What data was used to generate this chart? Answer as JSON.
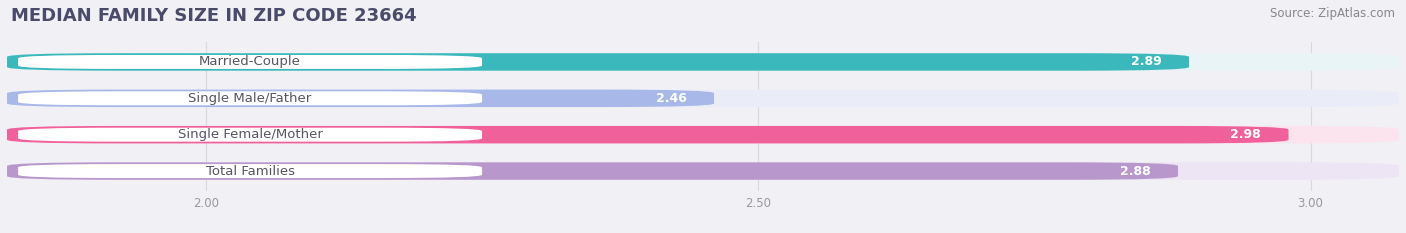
{
  "title": "MEDIAN FAMILY SIZE IN ZIP CODE 23664",
  "source": "Source: ZipAtlas.com",
  "categories": [
    "Married-Couple",
    "Single Male/Father",
    "Single Female/Mother",
    "Total Families"
  ],
  "values": [
    2.89,
    2.46,
    2.98,
    2.88
  ],
  "bar_colors": [
    "#3ab8bc",
    "#a8b8e8",
    "#f0609a",
    "#b898cc"
  ],
  "bar_bg_colors": [
    "#e8f4f6",
    "#eaecf8",
    "#fce4ee",
    "#ede4f4"
  ],
  "xmin": 1.82,
  "xmax": 3.08,
  "xticks": [
    2.0,
    2.5,
    3.0
  ],
  "bar_height": 0.48,
  "bar_gap": 0.15,
  "background_color": "#f0f0f5",
  "title_fontsize": 13,
  "label_fontsize": 9.5,
  "value_fontsize": 9,
  "source_fontsize": 8.5,
  "title_color": "#4a4a6a",
  "label_text_color": "#555566",
  "value_text_color": "#ffffff",
  "source_color": "#888888",
  "grid_color": "#d8d8e0",
  "tick_color": "#999999"
}
